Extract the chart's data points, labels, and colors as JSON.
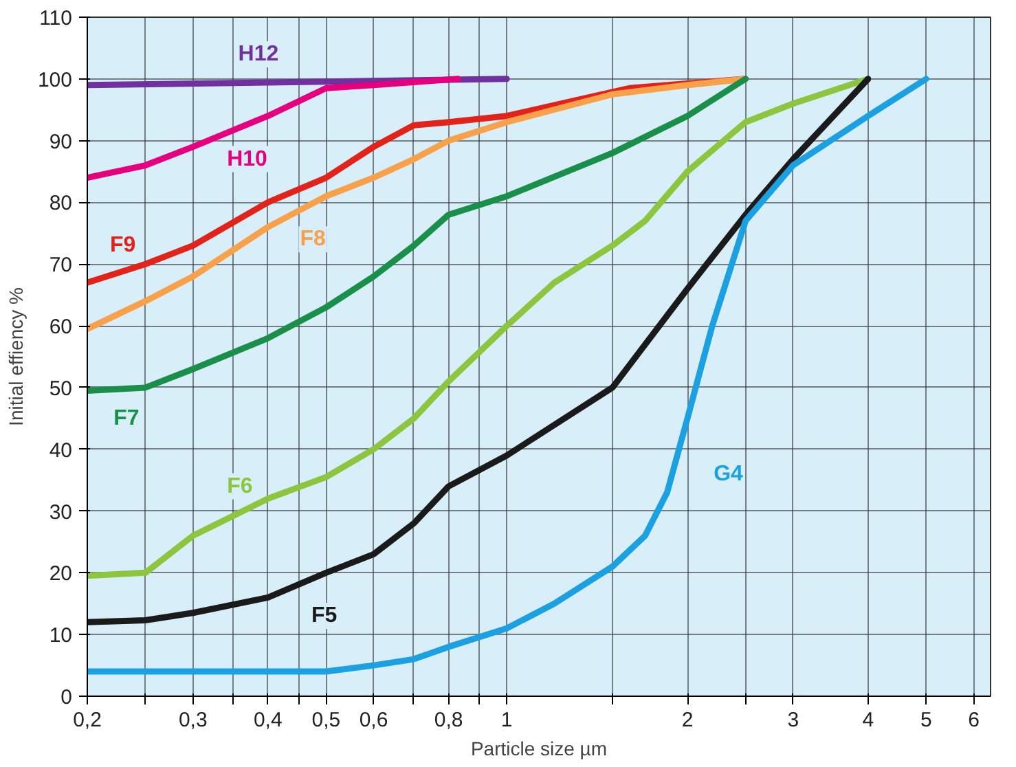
{
  "chart_data": {
    "type": "line",
    "xlabel": "Particle size µm",
    "ylabel": "Initial effiency %",
    "log": "x",
    "xlim": [
      0.2,
      6.4
    ],
    "ylim": [
      0,
      110
    ],
    "xticks": [
      {
        "value": 0.2,
        "label": "0,2"
      },
      {
        "value": 0.25,
        "label": null
      },
      {
        "value": 0.3,
        "label": "0,3"
      },
      {
        "value": 0.35,
        "label": null
      },
      {
        "value": 0.4,
        "label": "0,4"
      },
      {
        "value": 0.45,
        "label": null
      },
      {
        "value": 0.5,
        "label": "0,5"
      },
      {
        "value": 0.6,
        "label": "0,6"
      },
      {
        "value": 0.7,
        "label": null
      },
      {
        "value": 0.8,
        "label": "0,8"
      },
      {
        "value": 0.9,
        "label": null
      },
      {
        "value": 1,
        "label": "1"
      },
      {
        "value": 1.5,
        "label": null
      },
      {
        "value": 2,
        "label": "2"
      },
      {
        "value": 2.5,
        "label": null
      },
      {
        "value": 3,
        "label": "3"
      },
      {
        "value": 4,
        "label": "4"
      },
      {
        "value": 5,
        "label": "5"
      },
      {
        "value": 6,
        "label": "6"
      }
    ],
    "yticks": [
      0,
      10,
      20,
      30,
      40,
      50,
      60,
      70,
      80,
      90,
      100,
      110
    ],
    "grid": true,
    "marker": "none",
    "line_style": "solid",
    "series": [
      {
        "name": "H12",
        "color": "#7030a0",
        "x": [
          0.2,
          1
        ],
        "values": [
          99,
          100
        ]
      },
      {
        "name": "H10",
        "color": "#e6007e",
        "x": [
          0.2,
          0.25,
          0.3,
          0.4,
          0.5,
          0.6,
          0.83
        ],
        "values": [
          84,
          86,
          89,
          94,
          98.5,
          99,
          100
        ]
      },
      {
        "name": "F9",
        "color": "#e2231a",
        "x": [
          0.2,
          0.25,
          0.3,
          0.4,
          0.5,
          0.6,
          0.7,
          0.8,
          1,
          1.3,
          1.6,
          2.5
        ],
        "values": [
          67,
          70,
          73,
          80,
          84,
          89,
          92.5,
          93,
          94,
          96.5,
          98.5,
          100
        ]
      },
      {
        "name": "F8",
        "color": "#f7a14a",
        "x": [
          0.2,
          0.25,
          0.3,
          0.4,
          0.5,
          0.6,
          0.7,
          0.8,
          1,
          1.5,
          2,
          2.5
        ],
        "values": [
          59.5,
          64,
          68,
          76,
          81,
          84,
          87,
          90,
          93,
          97.5,
          99,
          100
        ]
      },
      {
        "name": "F7",
        "color": "#1a8f4a",
        "x": [
          0.2,
          0.25,
          0.3,
          0.4,
          0.5,
          0.6,
          0.7,
          0.8,
          1,
          1.5,
          2,
          2.5
        ],
        "values": [
          49.5,
          50,
          53,
          58,
          63,
          68,
          73,
          78,
          81,
          88,
          94,
          100
        ]
      },
      {
        "name": "F6",
        "color": "#8cc63f",
        "x": [
          0.2,
          0.25,
          0.3,
          0.4,
          0.5,
          0.6,
          0.7,
          0.8,
          1,
          1.2,
          1.5,
          1.7,
          2,
          2.5,
          3,
          4
        ],
        "values": [
          19.5,
          20,
          26,
          32,
          35.5,
          40,
          45,
          51,
          60,
          67,
          73,
          77,
          85,
          93,
          96,
          100
        ]
      },
      {
        "name": "F5",
        "color": "#1a1a1a",
        "x": [
          0.2,
          0.25,
          0.3,
          0.4,
          0.5,
          0.6,
          0.7,
          0.8,
          1,
          1.5,
          2,
          2.5,
          3,
          4
        ],
        "values": [
          12,
          12.3,
          13.5,
          16,
          20,
          23,
          28,
          34,
          39,
          50,
          66,
          78,
          87,
          100
        ]
      },
      {
        "name": "G4",
        "color": "#1ba1e2",
        "x": [
          0.2,
          0.5,
          0.6,
          0.7,
          0.8,
          1,
          1.2,
          1.5,
          1.7,
          1.85,
          2,
          2.2,
          2.5,
          3,
          4,
          5
        ],
        "values": [
          4,
          4,
          5,
          6,
          8,
          11,
          15,
          21,
          26,
          33,
          45,
          60,
          77,
          86,
          94,
          100
        ]
      }
    ]
  }
}
